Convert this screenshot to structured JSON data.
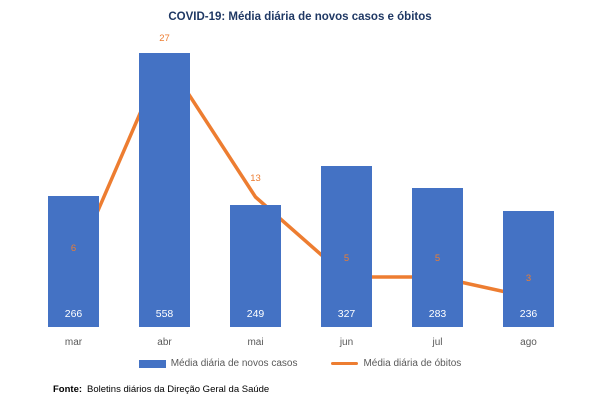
{
  "chart_data": {
    "type": "bar",
    "subtype": "bar-with-line-overlay",
    "title": "COVID-19: Média diária de novos casos e óbitos",
    "categories": [
      "mar",
      "abr",
      "mai",
      "jun",
      "jul",
      "ago"
    ],
    "series": [
      {
        "name": "Média diária de novos casos",
        "type": "bar",
        "color": "#4472C4",
        "values": [
          266,
          558,
          249,
          327,
          283,
          236
        ]
      },
      {
        "name": "Média diária de óbitos",
        "type": "line",
        "color": "#ED7D31",
        "values": [
          6,
          27,
          13,
          5,
          5,
          3
        ]
      }
    ],
    "data_labels": {
      "bar_labels_color": "#FFFFFF",
      "line_labels_color": "#ED7D31"
    },
    "legend_position": "bottom",
    "grid": false,
    "axes_visible": false
  },
  "title": "COVID-19: Média diária de novos casos e óbitos",
  "legend": {
    "cases_label": "Média diária de novos casos",
    "deaths_label": "Média diária de óbitos"
  },
  "footer": {
    "label": "Fonte:",
    "text": "Boletins diários da Direção Geral da Saúde"
  },
  "colors": {
    "title": "#1F3864",
    "bar": "#4472C4",
    "line": "#ED7D31",
    "axis_text": "#595959"
  }
}
